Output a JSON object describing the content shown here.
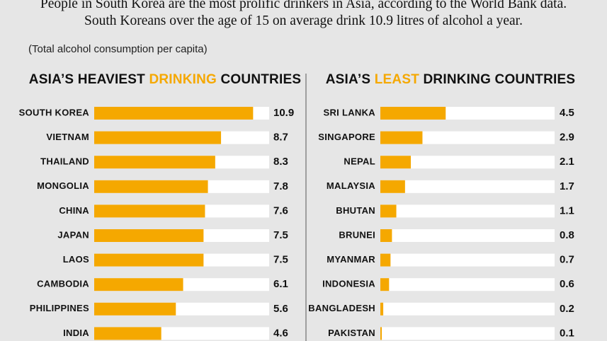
{
  "header": {
    "intro": "People in South Korea are the most prolific drinkers in Asia, according to the World Bank data. South Koreans over the age of 15 on average drink 10.9 litres of alcohol a year.",
    "note": "(Total alcohol consumption per capita)"
  },
  "chart_data": [
    {
      "type": "bar",
      "orientation": "horizontal",
      "title": [
        "ASIA’S HEAVIEST ",
        "DRINKING",
        " COUNTRIES"
      ],
      "categories": [
        "SOUTH KOREA",
        "VIETNAM",
        "THAILAND",
        "MONGOLIA",
        "CHINA",
        "JAPAN",
        "LAOS",
        "CAMBODIA",
        "PHILIPPINES",
        "INDIA"
      ],
      "values": [
        10.9,
        8.7,
        8.3,
        7.8,
        7.6,
        7.5,
        7.5,
        6.1,
        5.6,
        4.6
      ],
      "color": "#f5a800",
      "xlim": [
        0,
        12
      ]
    },
    {
      "type": "bar",
      "orientation": "horizontal",
      "title": [
        "ASIA’S ",
        "LEAST",
        " DRINKING COUNTRIES"
      ],
      "categories": [
        "SRI LANKA",
        "SINGAPORE",
        "NEPAL",
        "MALAYSIA",
        "BHUTAN",
        "BRUNEI",
        "MYANMAR",
        "INDONESIA",
        "BANGLADESH",
        "PAKISTAN"
      ],
      "values": [
        4.5,
        2.9,
        2.1,
        1.7,
        1.1,
        0.8,
        0.7,
        0.6,
        0.2,
        0.1
      ],
      "color": "#f5a800",
      "xlim": [
        0,
        12
      ]
    }
  ]
}
